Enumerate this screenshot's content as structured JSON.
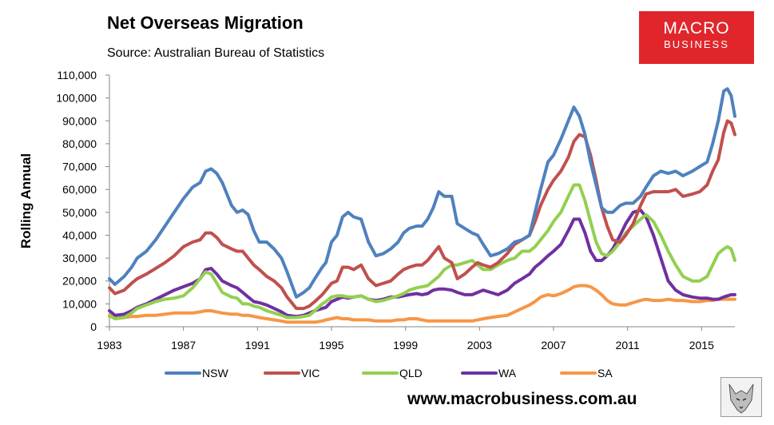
{
  "header": {
    "title": "Net Overseas Migration",
    "source": "Source: Australian Bureau of Statistics"
  },
  "logo": {
    "line1": "MACRO",
    "line2": "BUSINESS",
    "color": "#e0262b"
  },
  "footer": {
    "url": "www.macrobusiness.com.au"
  },
  "mascot": {
    "icon": "wolf-icon"
  },
  "chart_data": {
    "type": "line",
    "title": "Net Overseas Migration",
    "xlabel": "",
    "ylabel": "Rolling Annual",
    "xlim": [
      1983,
      2016.8
    ],
    "ylim": [
      0,
      110000
    ],
    "grid": false,
    "legend": "bottom",
    "y_ticks": [
      0,
      10000,
      20000,
      30000,
      40000,
      50000,
      60000,
      70000,
      80000,
      90000,
      100000,
      110000
    ],
    "y_tick_labels": [
      "0",
      "10,000",
      "20,000",
      "30,000",
      "40,000",
      "50,000",
      "60,000",
      "70,000",
      "80,000",
      "90,000",
      "100,000",
      "110,000"
    ],
    "x_ticks": [
      1983,
      1987,
      1991,
      1995,
      1999,
      2003,
      2007,
      2011,
      2015
    ],
    "x_tick_labels": [
      "1983",
      "1987",
      "1991",
      "1995",
      "1999",
      "2003",
      "2007",
      "2011",
      "2015"
    ],
    "series": [
      {
        "name": "NSW",
        "color": "#4f81bd",
        "x": [
          1983,
          1983.3,
          1983.8,
          1984.2,
          1984.5,
          1985,
          1985.5,
          1986,
          1986.5,
          1987,
          1987.5,
          1987.9,
          1988.2,
          1988.5,
          1988.8,
          1989.1,
          1989.6,
          1989.9,
          1990.2,
          1990.5,
          1990.8,
          1991.1,
          1991.5,
          1991.9,
          1992.3,
          1992.6,
          1993.1,
          1993.5,
          1993.8,
          1994.1,
          1994.5,
          1994.7,
          1995,
          1995.3,
          1995.6,
          1995.9,
          1996.2,
          1996.6,
          1997,
          1997.4,
          1997.8,
          1998.2,
          1998.6,
          1998.9,
          1999.2,
          1999.6,
          1999.9,
          2000.2,
          2000.5,
          2000.8,
          2001.1,
          2001.5,
          2001.8,
          2002.2,
          2002.6,
          2002.9,
          2003.2,
          2003.6,
          2004,
          2004.5,
          2004.9,
          2005.3,
          2005.7,
          2006,
          2006.3,
          2006.7,
          2007,
          2007.4,
          2007.8,
          2008.1,
          2008.4,
          2008.7,
          2009,
          2009.3,
          2009.6,
          2009.9,
          2010.2,
          2010.6,
          2010.9,
          2011.3,
          2011.7,
          2012,
          2012.4,
          2012.8,
          2013.2,
          2013.6,
          2014,
          2014.5,
          2014.9,
          2015.3,
          2015.6,
          2015.9,
          2016.2,
          2016.4,
          2016.6,
          2016.8
        ],
        "values": [
          21000,
          18500,
          22000,
          26000,
          30000,
          33000,
          38000,
          44000,
          50000,
          56000,
          61000,
          63000,
          68000,
          69000,
          67000,
          63000,
          53000,
          50000,
          51000,
          49000,
          42000,
          37000,
          37000,
          34000,
          30000,
          24000,
          13000,
          15000,
          17000,
          21000,
          26000,
          28000,
          37000,
          40000,
          48000,
          50000,
          48000,
          47000,
          37000,
          31000,
          32000,
          34000,
          37000,
          41000,
          43000,
          44000,
          44000,
          47000,
          52000,
          59000,
          57000,
          57000,
          45000,
          43000,
          41000,
          40000,
          36000,
          31000,
          32000,
          34000,
          37000,
          38000,
          40000,
          50000,
          60000,
          72000,
          75000,
          82000,
          90000,
          96000,
          92000,
          84000,
          72000,
          62000,
          52000,
          50000,
          50000,
          53000,
          54000,
          54000,
          57000,
          61000,
          66000,
          68000,
          67000,
          68000,
          66000,
          68000,
          70000,
          72000,
          80000,
          90000,
          103000,
          104000,
          101000,
          92000
        ]
      },
      {
        "name": "VIC",
        "color": "#c0504d",
        "x": [
          1983,
          1983.3,
          1983.8,
          1984.2,
          1984.5,
          1985,
          1985.5,
          1986,
          1986.5,
          1987,
          1987.5,
          1987.9,
          1988.2,
          1988.5,
          1988.8,
          1989.1,
          1989.6,
          1989.9,
          1990.2,
          1990.5,
          1990.8,
          1991.1,
          1991.5,
          1991.9,
          1992.3,
          1992.6,
          1993.1,
          1993.5,
          1993.8,
          1994.1,
          1994.5,
          1994.7,
          1995,
          1995.3,
          1995.6,
          1995.9,
          1996.2,
          1996.6,
          1997,
          1997.4,
          1997.8,
          1998.2,
          1998.6,
          1998.9,
          1999.2,
          1999.6,
          1999.9,
          2000.2,
          2000.5,
          2000.8,
          2001.1,
          2001.5,
          2001.8,
          2002.2,
          2002.6,
          2002.9,
          2003.2,
          2003.6,
          2004,
          2004.5,
          2004.9,
          2005.3,
          2005.7,
          2006,
          2006.3,
          2006.7,
          2007,
          2007.4,
          2007.8,
          2008.1,
          2008.4,
          2008.7,
          2009,
          2009.3,
          2009.6,
          2009.9,
          2010.2,
          2010.6,
          2010.9,
          2011.3,
          2011.7,
          2012,
          2012.4,
          2012.8,
          2013.2,
          2013.6,
          2014,
          2014.5,
          2014.9,
          2015.3,
          2015.6,
          2015.9,
          2016.2,
          2016.4,
          2016.6,
          2016.8
        ],
        "values": [
          17000,
          14500,
          16000,
          19000,
          21000,
          23000,
          25500,
          28000,
          31000,
          35000,
          37000,
          38000,
          41000,
          41000,
          39000,
          36000,
          34000,
          33000,
          33000,
          30000,
          27000,
          25000,
          22000,
          20000,
          17000,
          13000,
          8000,
          8000,
          9000,
          11000,
          14000,
          16000,
          19000,
          20000,
          26000,
          26000,
          25000,
          27000,
          21000,
          18000,
          19000,
          20000,
          23000,
          25000,
          26000,
          27000,
          27000,
          29000,
          32000,
          35000,
          30000,
          28000,
          21000,
          23000,
          26000,
          28000,
          27000,
          26000,
          28000,
          32000,
          36000,
          38000,
          40000,
          46000,
          53000,
          60000,
          64000,
          68000,
          74000,
          81000,
          84000,
          83000,
          75000,
          64000,
          52000,
          44000,
          38000,
          37000,
          40000,
          45000,
          53000,
          58000,
          59000,
          59000,
          59000,
          60000,
          57000,
          58000,
          59000,
          62000,
          68000,
          73000,
          85000,
          90000,
          89000,
          84000
        ]
      },
      {
        "name": "QLD",
        "color": "#92d050",
        "x": [
          1983,
          1983.3,
          1983.8,
          1984.2,
          1984.5,
          1985,
          1985.5,
          1986,
          1986.5,
          1987,
          1987.5,
          1987.9,
          1988.2,
          1988.5,
          1988.8,
          1989.1,
          1989.6,
          1989.9,
          1990.2,
          1990.5,
          1990.8,
          1991.1,
          1991.5,
          1991.9,
          1992.3,
          1992.6,
          1993.1,
          1993.5,
          1993.8,
          1994.1,
          1994.5,
          1994.7,
          1995,
          1995.3,
          1995.6,
          1995.9,
          1996.2,
          1996.6,
          1997,
          1997.4,
          1997.8,
          1998.2,
          1998.6,
          1998.9,
          1999.2,
          1999.6,
          1999.9,
          2000.2,
          2000.5,
          2000.8,
          2001.1,
          2001.5,
          2001.8,
          2002.2,
          2002.6,
          2002.9,
          2003.2,
          2003.6,
          2004,
          2004.5,
          2004.9,
          2005.3,
          2005.7,
          2006,
          2006.3,
          2006.7,
          2007,
          2007.4,
          2007.8,
          2008.1,
          2008.4,
          2008.7,
          2009,
          2009.3,
          2009.6,
          2009.9,
          2010.2,
          2010.6,
          2010.9,
          2011.3,
          2011.7,
          2012,
          2012.4,
          2012.8,
          2013.2,
          2013.6,
          2014,
          2014.5,
          2014.9,
          2015.3,
          2015.6,
          2015.9,
          2016.2,
          2016.4,
          2016.6,
          2016.8
        ],
        "values": [
          5000,
          3500,
          4000,
          6000,
          8000,
          9500,
          11000,
          12000,
          12500,
          13500,
          17000,
          21000,
          24000,
          23000,
          19000,
          15000,
          13000,
          12500,
          10000,
          10000,
          9000,
          8500,
          7000,
          6000,
          5000,
          4000,
          4000,
          4500,
          5000,
          7000,
          10000,
          11000,
          13000,
          13500,
          13500,
          13000,
          13000,
          13500,
          12000,
          11000,
          11500,
          12500,
          13500,
          14500,
          16000,
          17000,
          17500,
          18000,
          20000,
          22000,
          25000,
          27000,
          27000,
          28000,
          29000,
          27000,
          25000,
          25000,
          27000,
          29000,
          30000,
          33000,
          33000,
          35000,
          38000,
          42000,
          46000,
          50000,
          57000,
          62000,
          62000,
          55000,
          46000,
          37000,
          32000,
          31000,
          33000,
          37000,
          41000,
          44000,
          47000,
          49000,
          46000,
          40000,
          33000,
          27000,
          22000,
          20000,
          20000,
          22000,
          27000,
          32000,
          34000,
          35000,
          34000,
          29000
        ]
      },
      {
        "name": "WA",
        "color": "#7030a0",
        "x": [
          1983,
          1983.3,
          1983.8,
          1984.2,
          1984.5,
          1985,
          1985.5,
          1986,
          1986.5,
          1987,
          1987.5,
          1987.9,
          1988.2,
          1988.5,
          1988.8,
          1989.1,
          1989.6,
          1989.9,
          1990.2,
          1990.5,
          1990.8,
          1991.1,
          1991.5,
          1991.9,
          1992.3,
          1992.6,
          1993.1,
          1993.5,
          1993.8,
          1994.1,
          1994.5,
          1994.7,
          1995,
          1995.3,
          1995.6,
          1995.9,
          1996.2,
          1996.6,
          1997,
          1997.4,
          1997.8,
          1998.2,
          1998.6,
          1998.9,
          1999.2,
          1999.6,
          1999.9,
          2000.2,
          2000.5,
          2000.8,
          2001.1,
          2001.5,
          2001.8,
          2002.2,
          2002.6,
          2002.9,
          2003.2,
          2003.6,
          2004,
          2004.5,
          2004.9,
          2005.3,
          2005.7,
          2006,
          2006.3,
          2006.7,
          2007,
          2007.4,
          2007.8,
          2008.1,
          2008.4,
          2008.7,
          2009,
          2009.3,
          2009.6,
          2009.9,
          2010.2,
          2010.6,
          2010.9,
          2011.3,
          2011.7,
          2012,
          2012.4,
          2012.8,
          2013.2,
          2013.6,
          2014,
          2014.5,
          2014.9,
          2015.3,
          2015.6,
          2015.9,
          2016.2,
          2016.4,
          2016.6,
          2016.8
        ],
        "values": [
          7000,
          5000,
          5500,
          7000,
          8500,
          10000,
          12000,
          14000,
          16000,
          17500,
          19000,
          21000,
          25000,
          25500,
          23000,
          20000,
          18000,
          17000,
          15000,
          13000,
          11000,
          10500,
          9500,
          8000,
          6500,
          5000,
          4500,
          5000,
          6000,
          7000,
          8000,
          8500,
          11000,
          12000,
          13000,
          12500,
          13000,
          13500,
          12000,
          11500,
          12000,
          13000,
          13000,
          13500,
          14000,
          14500,
          14000,
          14500,
          16000,
          16500,
          16500,
          16000,
          15000,
          14000,
          14000,
          15000,
          16000,
          15000,
          14000,
          16000,
          19000,
          21000,
          23000,
          26000,
          28000,
          31000,
          33000,
          36000,
          42000,
          47000,
          47000,
          41000,
          33000,
          29000,
          29000,
          31000,
          34000,
          40000,
          45000,
          50000,
          51000,
          48000,
          40000,
          30000,
          20000,
          16000,
          14000,
          13000,
          12500,
          12500,
          12000,
          12000,
          13000,
          13500,
          14000,
          14000
        ]
      },
      {
        "name": "SA",
        "color": "#f79646",
        "x": [
          1983,
          1983.3,
          1983.8,
          1984.2,
          1984.5,
          1985,
          1985.5,
          1986,
          1986.5,
          1987,
          1987.5,
          1987.9,
          1988.2,
          1988.5,
          1988.8,
          1989.1,
          1989.6,
          1989.9,
          1990.2,
          1990.5,
          1990.8,
          1991.1,
          1991.5,
          1991.9,
          1992.3,
          1992.6,
          1993.1,
          1993.5,
          1993.8,
          1994.1,
          1994.5,
          1994.7,
          1995,
          1995.3,
          1995.6,
          1995.9,
          1996.2,
          1996.6,
          1997,
          1997.4,
          1997.8,
          1998.2,
          1998.6,
          1998.9,
          1999.2,
          1999.6,
          1999.9,
          2000.2,
          2000.5,
          2000.8,
          2001.1,
          2001.5,
          2001.8,
          2002.2,
          2002.6,
          2002.9,
          2003.2,
          2003.6,
          2004,
          2004.5,
          2004.9,
          2005.3,
          2005.7,
          2006,
          2006.3,
          2006.7,
          2007,
          2007.4,
          2007.8,
          2008.1,
          2008.4,
          2008.7,
          2009,
          2009.3,
          2009.6,
          2009.9,
          2010.2,
          2010.6,
          2010.9,
          2011.3,
          2011.7,
          2012,
          2012.4,
          2012.8,
          2013.2,
          2013.6,
          2014,
          2014.5,
          2014.9,
          2015.3,
          2015.6,
          2015.9,
          2016.2,
          2016.4,
          2016.6,
          2016.8
        ],
        "values": [
          4500,
          4000,
          4000,
          4500,
          4500,
          5000,
          5000,
          5500,
          6000,
          6000,
          6000,
          6500,
          7000,
          7000,
          6500,
          6000,
          5500,
          5500,
          5000,
          5000,
          4500,
          4000,
          3500,
          3000,
          2500,
          2000,
          2000,
          2000,
          2000,
          2000,
          2500,
          3000,
          3500,
          4000,
          3500,
          3500,
          3000,
          3000,
          3000,
          2500,
          2500,
          2500,
          3000,
          3000,
          3500,
          3500,
          3000,
          2500,
          2500,
          2500,
          2500,
          2500,
          2500,
          2500,
          2500,
          3000,
          3500,
          4000,
          4500,
          5000,
          6500,
          8000,
          9500,
          11000,
          13000,
          14000,
          13500,
          14500,
          16000,
          17500,
          18000,
          18000,
          17500,
          16000,
          14000,
          11500,
          10000,
          9500,
          9500,
          10500,
          11500,
          12000,
          11500,
          11500,
          12000,
          11500,
          11500,
          11000,
          11000,
          11500,
          11500,
          12000,
          12000,
          12000,
          12000,
          12000
        ]
      }
    ]
  }
}
